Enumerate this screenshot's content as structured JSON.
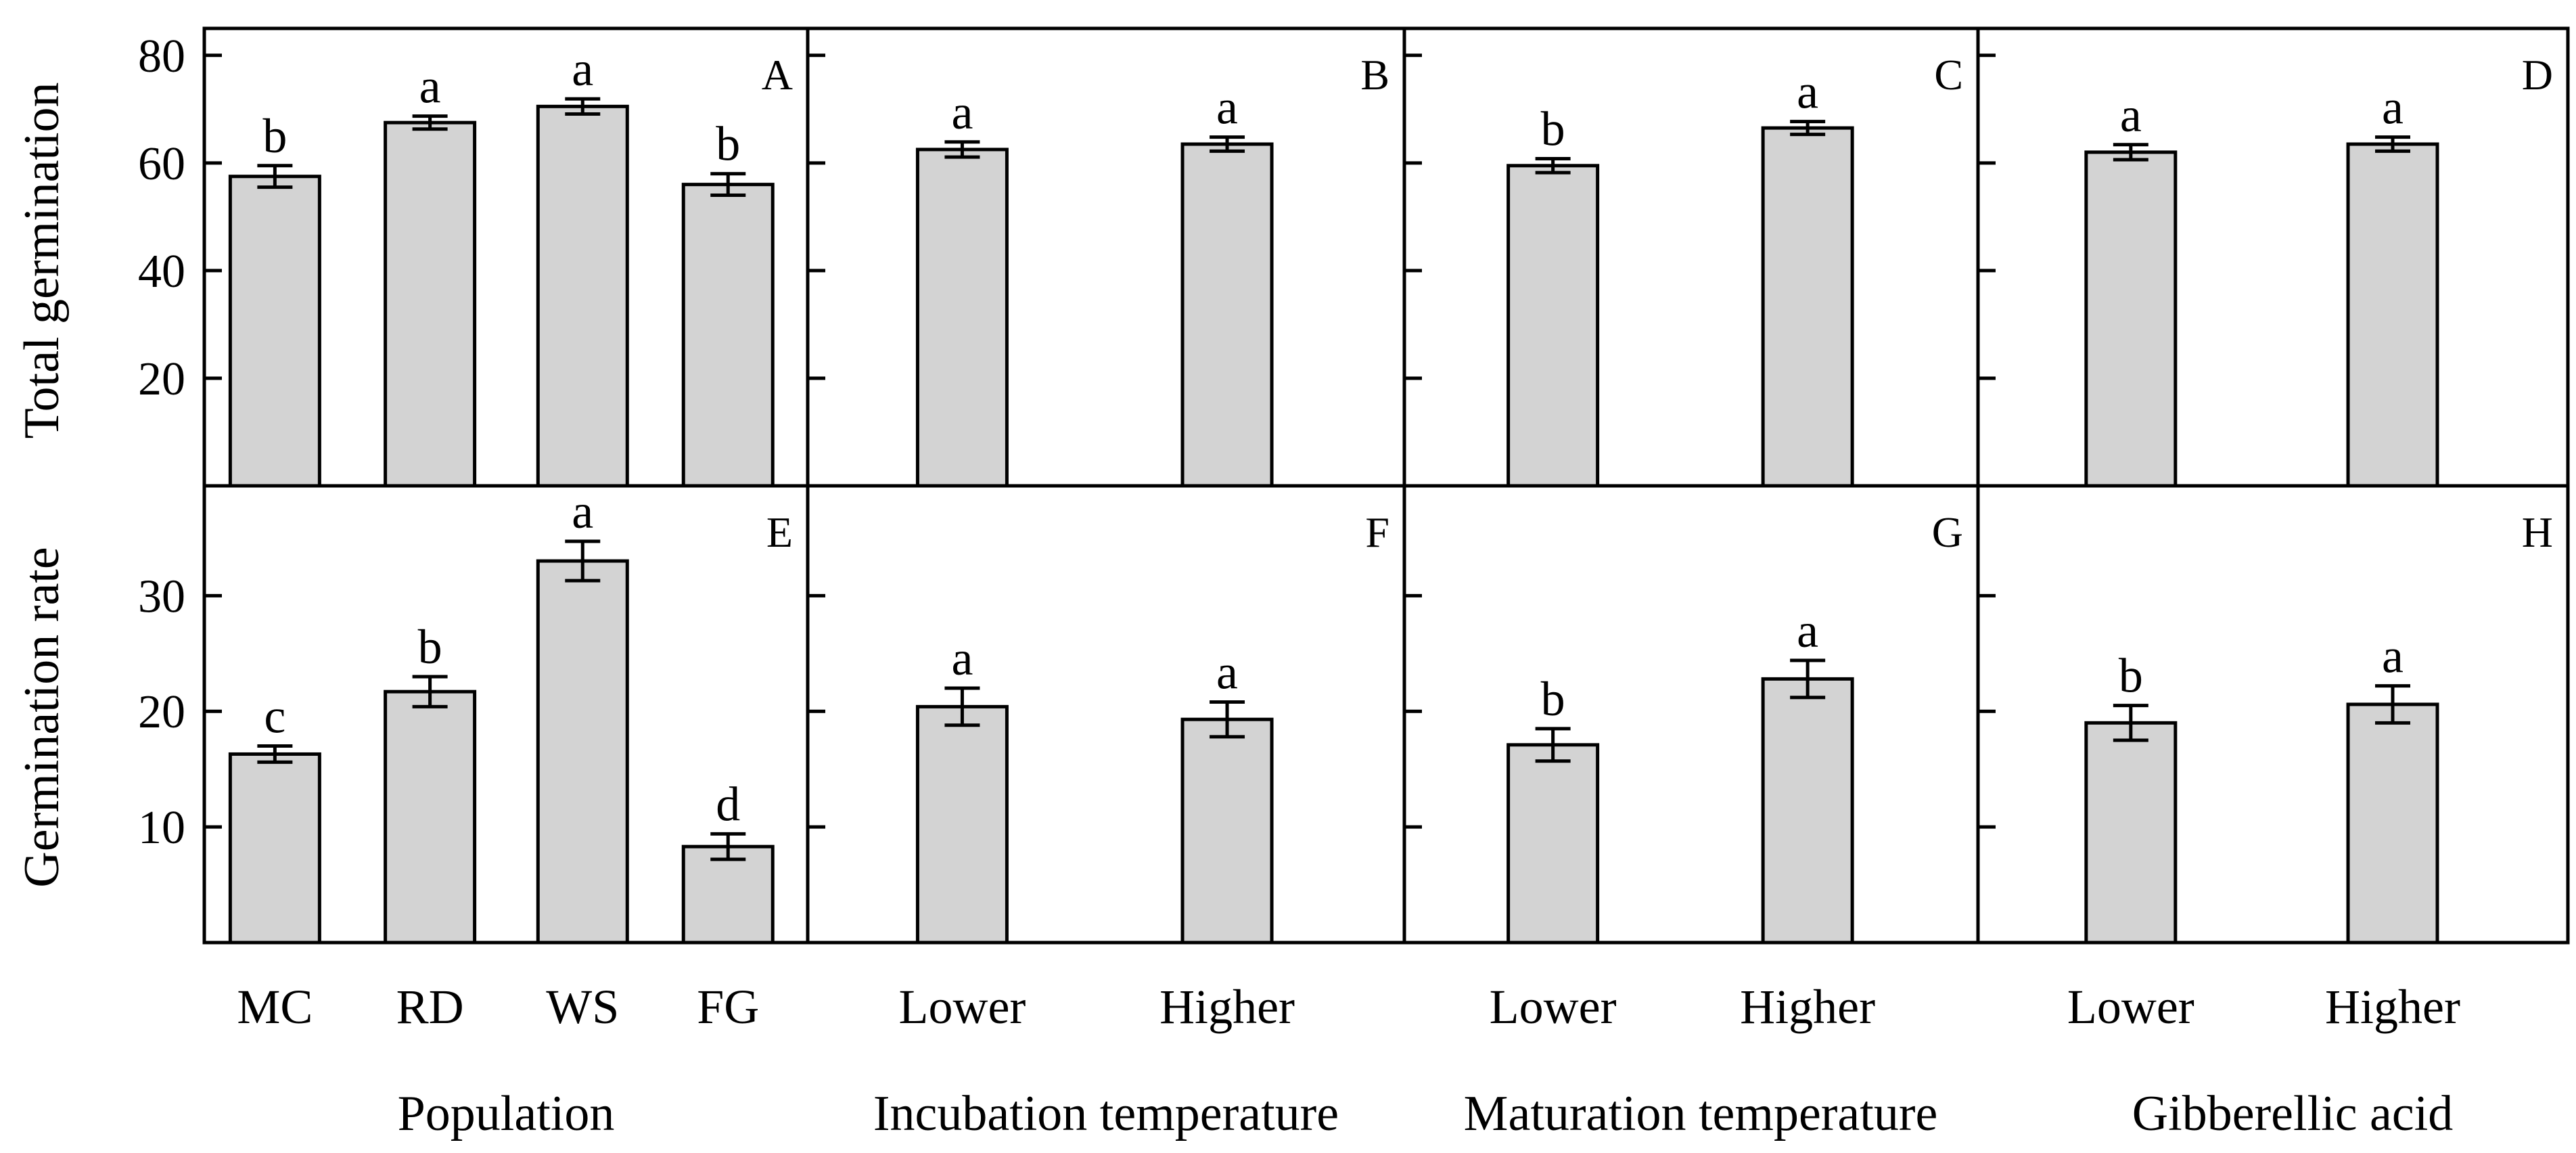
{
  "figure": {
    "y_axis_labels": [
      "Total germination",
      "Germination rate"
    ],
    "x_axis_titles": [
      "Population",
      "Incubation temperature",
      "Maturation temperature",
      "Gibberellic acid"
    ]
  },
  "chart_data": [
    {
      "type": "bar",
      "panel": "A",
      "row": 0,
      "col": 0,
      "ylabel": "Total germination",
      "xlabel": "Population",
      "categories": [
        "MC",
        "RD",
        "WS",
        "FG"
      ],
      "values": [
        57.5,
        67.5,
        70.5,
        56.0
      ],
      "errors": [
        2.0,
        1.2,
        1.4,
        2.0
      ],
      "letters": [
        "b",
        "a",
        "a",
        "b"
      ],
      "ylim": [
        0,
        85
      ],
      "yticks": [
        20,
        40,
        60,
        80
      ],
      "show_ytick_labels": true
    },
    {
      "type": "bar",
      "panel": "B",
      "row": 0,
      "col": 1,
      "ylabel": "",
      "xlabel": "Incubation temperature",
      "categories": [
        "Lower",
        "Higher"
      ],
      "values": [
        62.5,
        63.5
      ],
      "errors": [
        1.4,
        1.3
      ],
      "letters": [
        "a",
        "a"
      ],
      "ylim": [
        0,
        85
      ],
      "yticks": [
        20,
        40,
        60,
        80
      ],
      "show_ytick_labels": false
    },
    {
      "type": "bar",
      "panel": "C",
      "row": 0,
      "col": 2,
      "ylabel": "",
      "xlabel": "Maturation temperature",
      "categories": [
        "Lower",
        "Higher"
      ],
      "values": [
        59.5,
        66.5
      ],
      "errors": [
        1.3,
        1.2
      ],
      "letters": [
        "b",
        "a"
      ],
      "ylim": [
        0,
        85
      ],
      "yticks": [
        20,
        40,
        60,
        80
      ],
      "show_ytick_labels": false
    },
    {
      "type": "bar",
      "panel": "D",
      "row": 0,
      "col": 3,
      "ylabel": "",
      "xlabel": "Gibberellic acid",
      "categories": [
        "Lower",
        "Higher"
      ],
      "values": [
        62.0,
        63.5
      ],
      "errors": [
        1.4,
        1.3
      ],
      "letters": [
        "a",
        "a"
      ],
      "ylim": [
        0,
        85
      ],
      "yticks": [
        20,
        40,
        60,
        80
      ],
      "show_ytick_labels": false
    },
    {
      "type": "bar",
      "panel": "E",
      "row": 1,
      "col": 0,
      "ylabel": "Germination rate",
      "xlabel": "Population",
      "categories": [
        "MC",
        "RD",
        "WS",
        "FG"
      ],
      "values": [
        16.3,
        21.7,
        33.0,
        8.3
      ],
      "errors": [
        0.7,
        1.3,
        1.7,
        1.1
      ],
      "letters": [
        "c",
        "b",
        "a",
        "d"
      ],
      "ylim": [
        0,
        39.5
      ],
      "yticks": [
        10,
        20,
        30
      ],
      "show_ytick_labels": true
    },
    {
      "type": "bar",
      "panel": "F",
      "row": 1,
      "col": 1,
      "ylabel": "",
      "xlabel": "Incubation temperature",
      "categories": [
        "Lower",
        "Higher"
      ],
      "values": [
        20.4,
        19.3
      ],
      "errors": [
        1.6,
        1.5
      ],
      "letters": [
        "a",
        "a"
      ],
      "ylim": [
        0,
        39.5
      ],
      "yticks": [
        10,
        20,
        30
      ],
      "show_ytick_labels": false
    },
    {
      "type": "bar",
      "panel": "G",
      "row": 1,
      "col": 2,
      "ylabel": "",
      "xlabel": "Maturation temperature",
      "categories": [
        "Lower",
        "Higher"
      ],
      "values": [
        17.1,
        22.8
      ],
      "errors": [
        1.4,
        1.6
      ],
      "letters": [
        "b",
        "a"
      ],
      "ylim": [
        0,
        39.5
      ],
      "yticks": [
        10,
        20,
        30
      ],
      "show_ytick_labels": false
    },
    {
      "type": "bar",
      "panel": "H",
      "row": 1,
      "col": 3,
      "ylabel": "",
      "xlabel": "Gibberellic acid",
      "categories": [
        "Lower",
        "Higher"
      ],
      "values": [
        19.0,
        20.6
      ],
      "errors": [
        1.5,
        1.6
      ],
      "letters": [
        "b",
        "a"
      ],
      "ylim": [
        0,
        39.5
      ],
      "yticks": [
        10,
        20,
        30
      ],
      "show_ytick_labels": false
    }
  ],
  "style": {
    "bar_fill": "#d3d3d3",
    "bar_stroke": "#000000",
    "axis_color": "#000000"
  }
}
